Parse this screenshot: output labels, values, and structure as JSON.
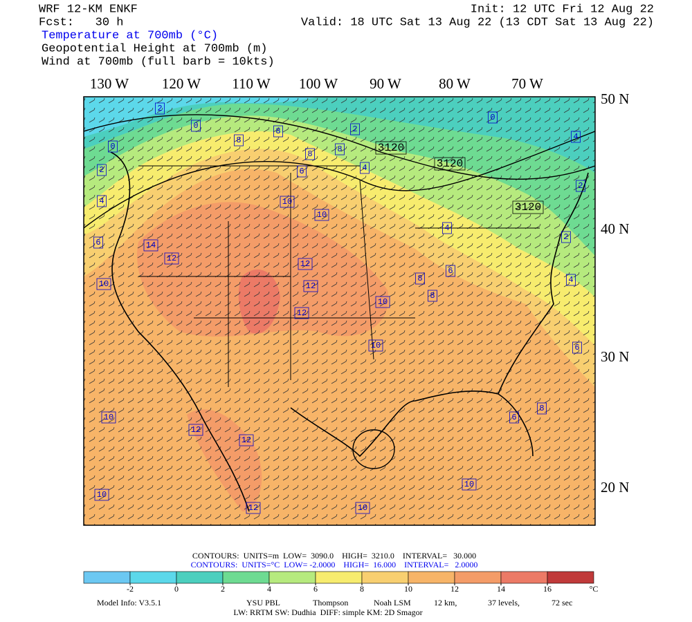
{
  "header": {
    "model": "WRF 12-KM ENKF",
    "forecast": "Fcst:   30 h",
    "init": "Init: 12 UTC Fri 12 Aug 22",
    "valid": "Valid: 18 UTC Sat 13 Aug 22 (13 CDT Sat 13 Aug 22)",
    "fields": [
      "Temperature at 700mb (°C)",
      "Geopotential Height at 700mb (m)",
      "Wind at 700mb (full barb = 10kts)"
    ]
  },
  "map": {
    "longitudes": [
      "130 W",
      "120 W",
      "110 W",
      "100 W",
      "90 W",
      "80 W",
      "70 W"
    ],
    "latitudes": [
      "50 N",
      "40 N",
      "30 N",
      "20 N"
    ],
    "height_labels": [
      "3120",
      "3120",
      "3120"
    ],
    "temperature_labels": [
      "0",
      "2",
      "0",
      "2",
      "4",
      "6",
      "8",
      "8",
      "8",
      "6",
      "8",
      "2",
      "4",
      "0",
      "4",
      "2",
      "2",
      "4",
      "6",
      "10",
      "10",
      "12",
      "14",
      "12",
      "12",
      "12",
      "10",
      "10",
      "8",
      "6",
      "4",
      "8",
      "10",
      "10",
      "12",
      "12",
      "10",
      "12",
      "10",
      "10",
      "8",
      "6"
    ]
  },
  "contours": {
    "height": "CONTOURS:  UNITS=m  LOW=  3090.0    HIGH=  3210.0    INTERVAL=   30.000",
    "temperature": "CONTOURS:  UNITS=°C  LOW= -2.0000    HIGH=  16.000    INTERVAL=   2.0000"
  },
  "colorbar": {
    "ticks": [
      -2,
      0,
      2,
      4,
      6,
      8,
      10,
      12,
      14,
      16
    ],
    "unit": "°C",
    "colors": [
      "#6cc8f2",
      "#5cd8ea",
      "#4ccfbe",
      "#6edb92",
      "#b6ea7e",
      "#f7ec6e",
      "#f8cf70",
      "#f7b468",
      "#f49c68",
      "#ec7a66",
      "#c03a3a"
    ]
  },
  "footer": {
    "model_info": [
      "Model Info: V3.5.1",
      "YSU PBL",
      "Thompson",
      "Noah LSM",
      "12 km,",
      "37 levels,",
      "72 sec"
    ],
    "physics": "LW: RRTM SW: Dudhia  DIFF: simple KM: 2D Smagor"
  }
}
